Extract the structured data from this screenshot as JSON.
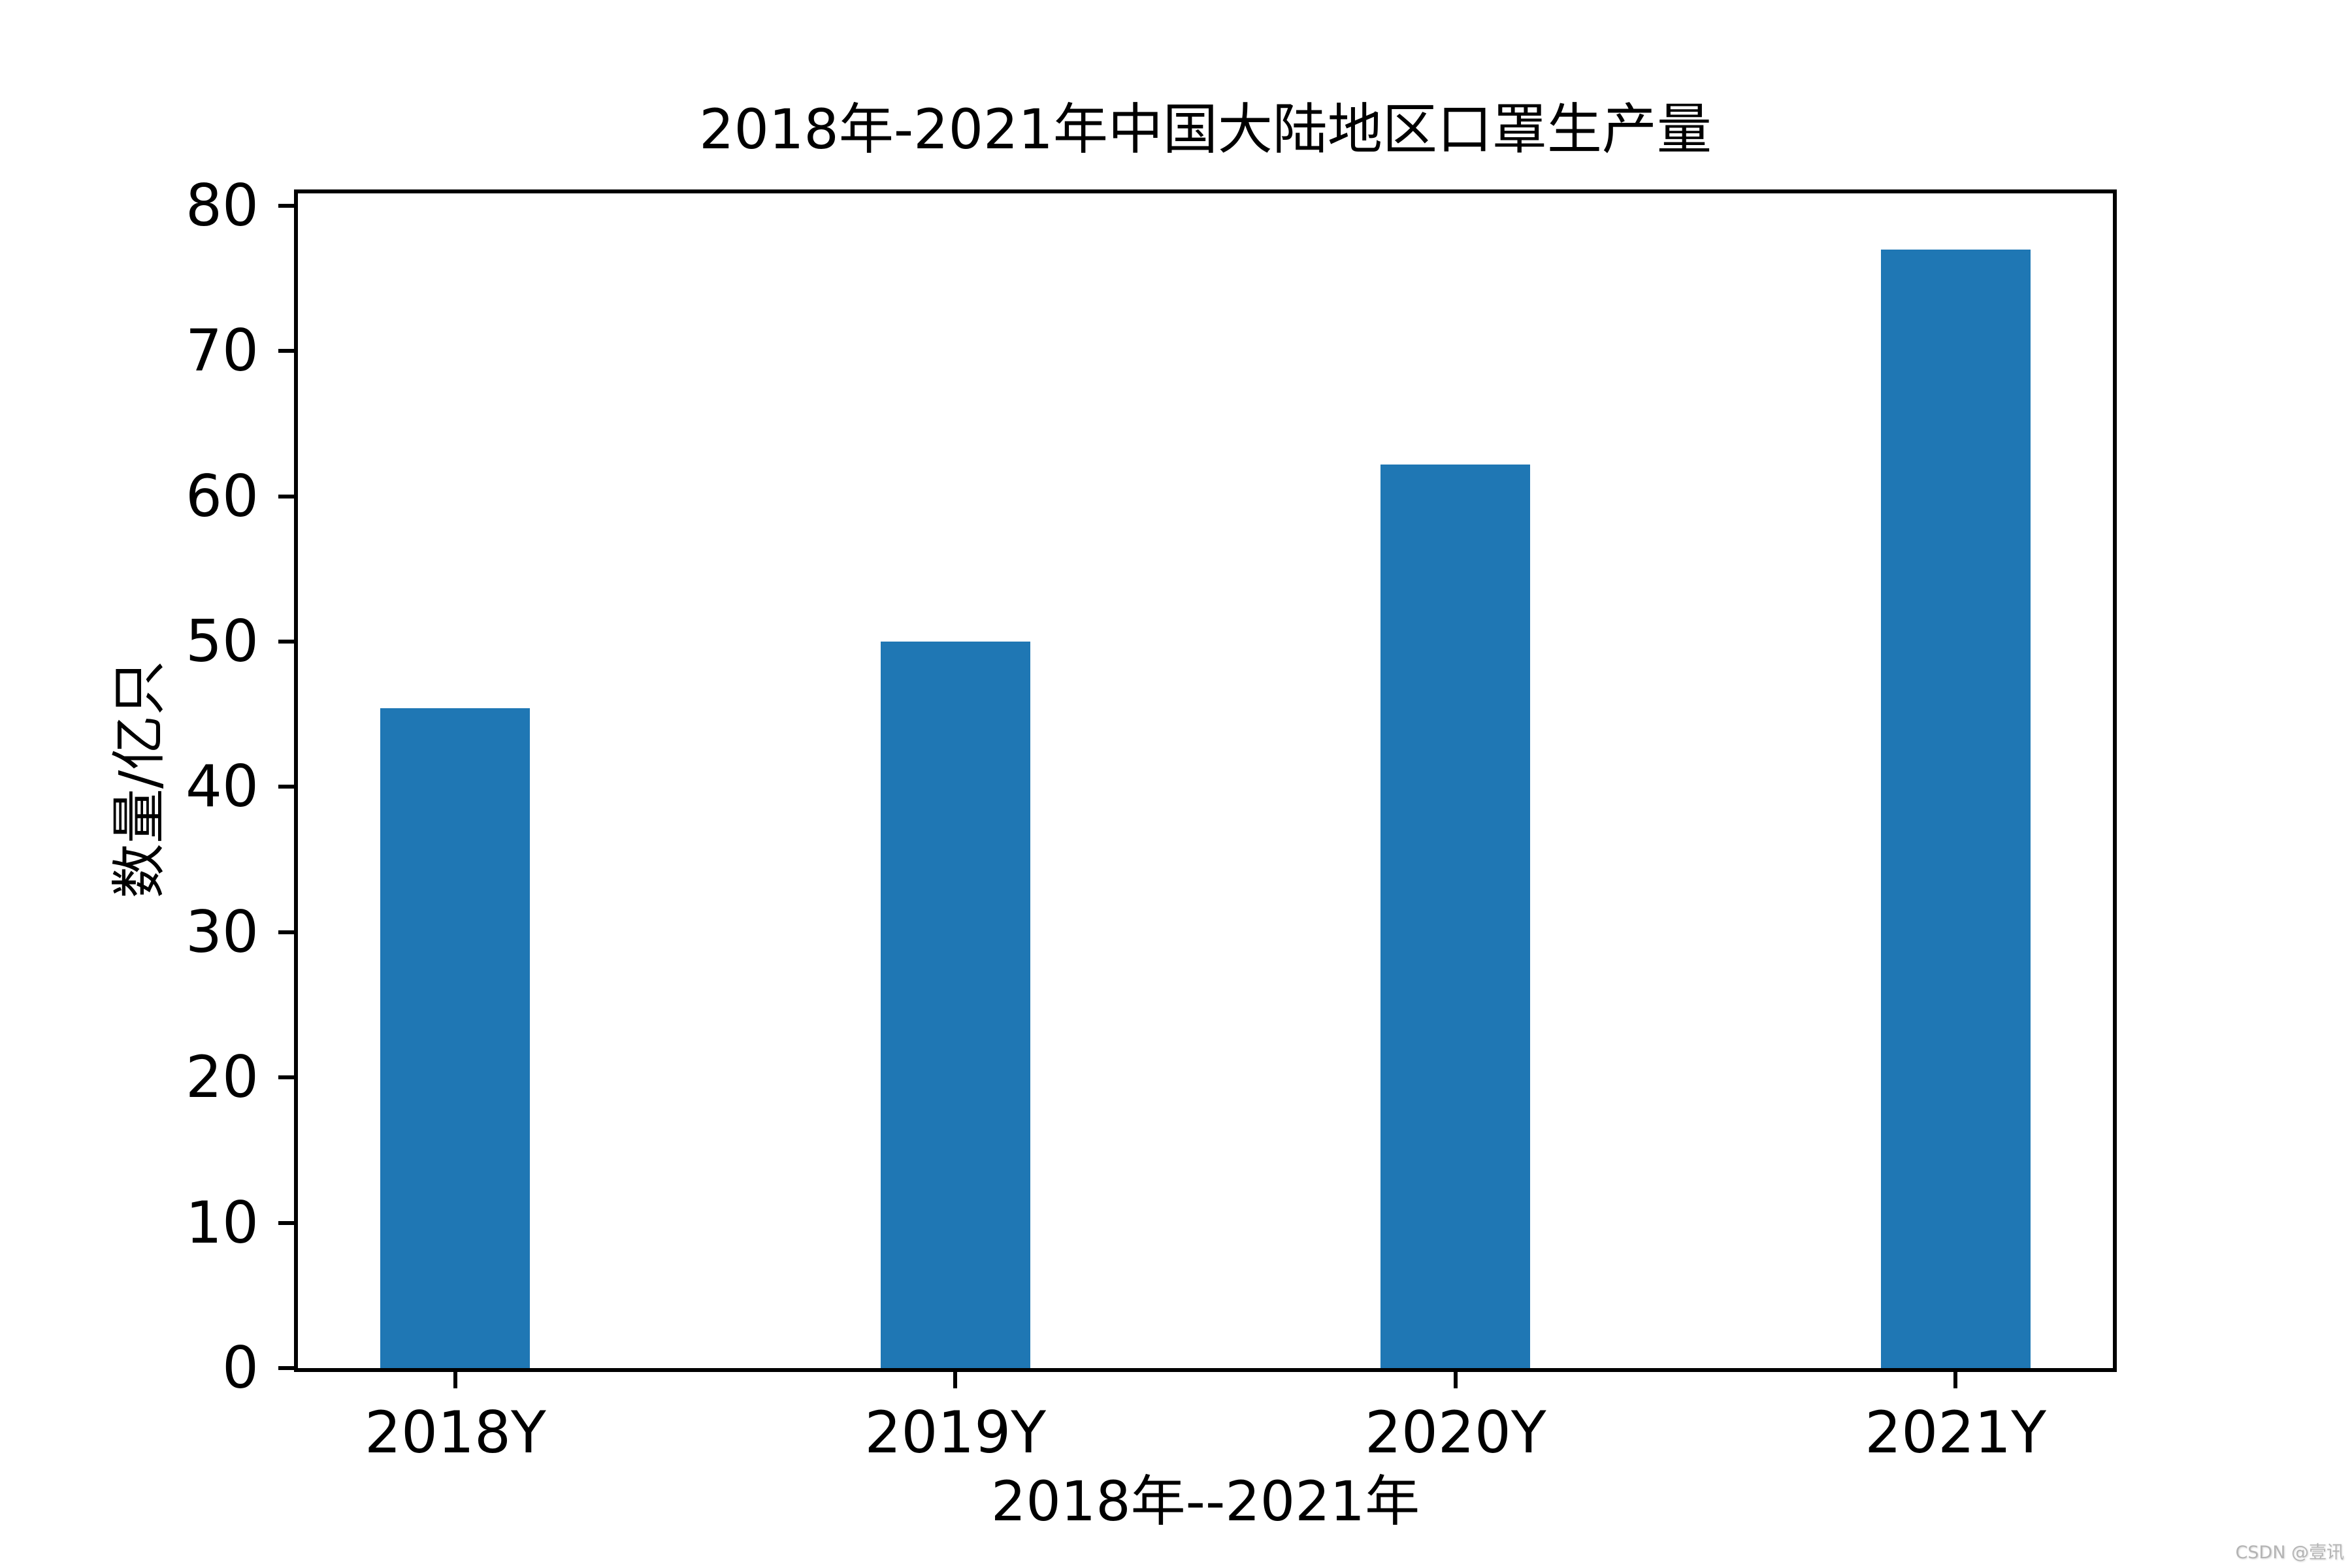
{
  "figure": {
    "background": "#ffffff",
    "watermark": "CSDN @壹讯"
  },
  "chart_data": {
    "type": "bar",
    "title": "2018年-2021年中国大陆地区口罩生产量",
    "xlabel": "2018年--2021年",
    "ylabel": "数量/亿只",
    "categories": [
      "2018Y",
      "2019Y",
      "2020Y",
      "2021Y"
    ],
    "values": [
      45.4,
      50,
      62.2,
      77
    ],
    "yticks": [
      0,
      10,
      20,
      30,
      40,
      50,
      60,
      70,
      80
    ],
    "ylim": [
      0,
      80.85
    ],
    "bar_color": "#1f77b4",
    "axis_color": "#000000",
    "grid": false,
    "legend_position": "none",
    "bar_centers_frac": [
      0.0867,
      0.3622,
      0.6378,
      0.9133
    ],
    "bar_width_frac": 0.0825
  }
}
